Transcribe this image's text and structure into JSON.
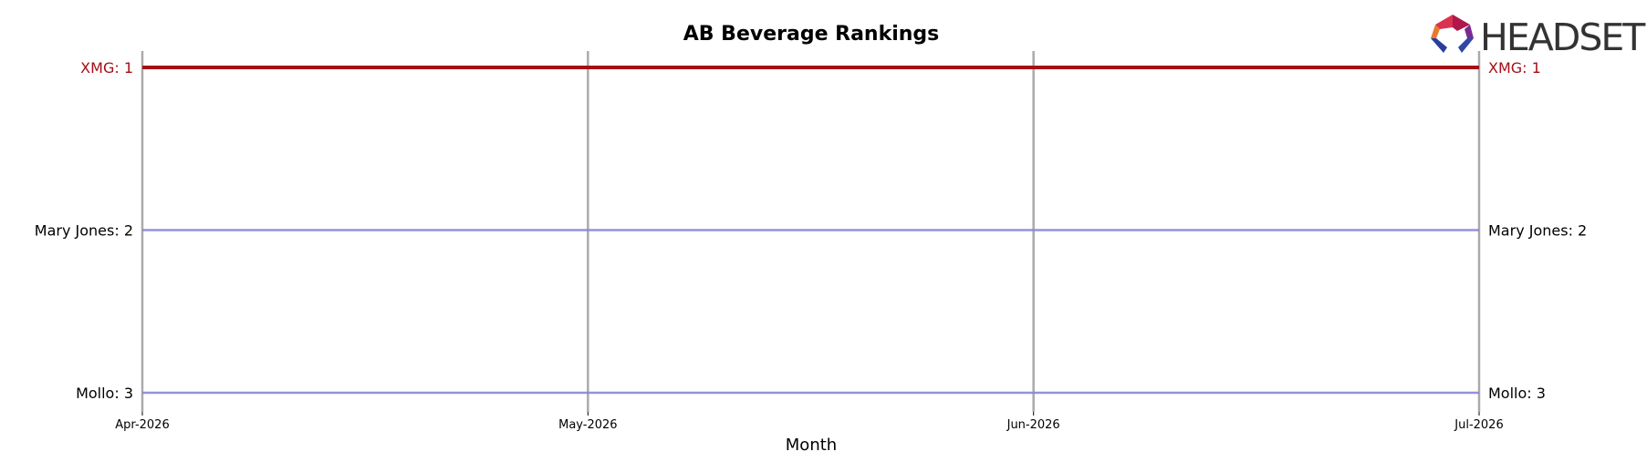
{
  "chart_data": {
    "type": "line",
    "title": "AB Beverage Rankings",
    "xlabel": "Month",
    "ylabel": "",
    "x": [
      "Apr-2026",
      "May-2026",
      "Jun-2026",
      "Jul-2026"
    ],
    "y_axis": "rank, inverted (1 at top)",
    "ylim": [
      1,
      3
    ],
    "grid": "vertical lines at each month",
    "series": [
      {
        "name": "XMG",
        "values": [
          1,
          1,
          1,
          1
        ],
        "color": "#a50f15",
        "highlight": true
      },
      {
        "name": "Mary Jones",
        "values": [
          2,
          2,
          2,
          2
        ],
        "color": "#8a85d6",
        "highlight": false
      },
      {
        "name": "Mollo",
        "values": [
          3,
          3,
          3,
          3
        ],
        "color": "#8a85d6",
        "highlight": false
      }
    ]
  },
  "logo": {
    "text": "HEADSET",
    "name": "headset-logo"
  }
}
